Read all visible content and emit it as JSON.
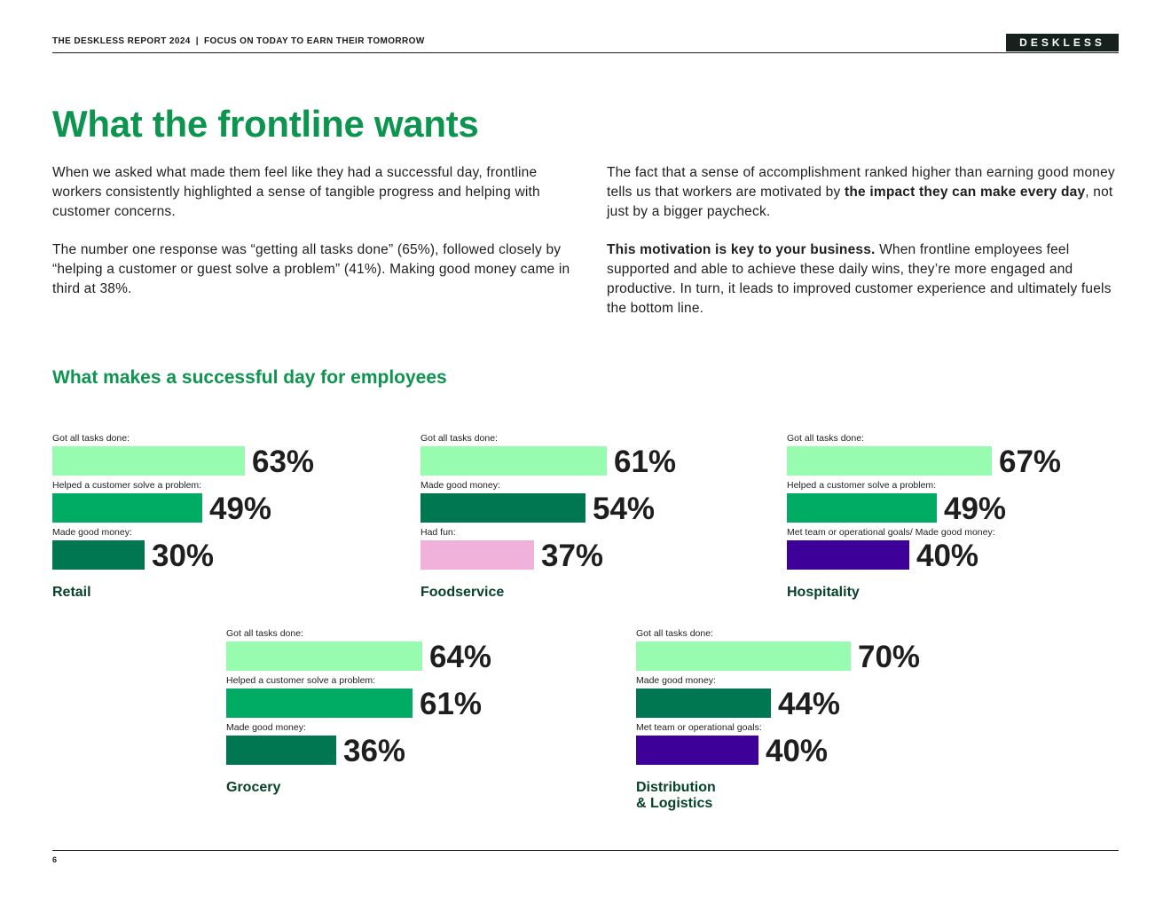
{
  "header": {
    "report_title": "THE DESKLESS REPORT 2024",
    "separator": "|",
    "subtitle": "FOCUS ON TODAY TO EARN THEIR TOMORROW",
    "brand": "DESKLESS"
  },
  "title": "What the frontline wants",
  "left_column": {
    "p1": "When we asked what made them feel like they had a successful day, frontline workers consistently highlighted a sense of tangible progress and helping with customer concerns.",
    "p2": "The number one response was “getting all tasks done” (65%), followed closely by “helping a customer or guest solve a problem” (41%). Making good money came in third at 38%."
  },
  "right_column": {
    "p1_start": "The fact that a sense of accomplishment ranked higher than earning good money tells us that workers are motivated by ",
    "p1_bold": "the impact they can make every day",
    "p1_end": ", not just by a bigger paycheck.",
    "p2_bold": "This motivation is key to your business.",
    "p2_rest": " When frontline employees feel supported and able to achieve these daily wins, they’re more engaged and productive. In turn, it leads to improved customer experience and ultimately fuels the bottom line."
  },
  "section_title": "What makes a successful day for employees",
  "colors": {
    "tasks": "#97fbb0",
    "customer": "#00ab63",
    "money": "#007750",
    "fun": "#f0b2da",
    "goals": "#3d0099",
    "accent": "#0d9550"
  },
  "chart_data": [
    {
      "type": "bar",
      "title": "Retail",
      "categories": [
        "Got all tasks done:",
        "Helped a customer solve a problem:",
        "Made good money:"
      ],
      "values": [
        63,
        49,
        30
      ],
      "value_labels": [
        "63%",
        "49%",
        "30%"
      ],
      "color_keys": [
        "tasks",
        "customer",
        "money"
      ],
      "unit": "%"
    },
    {
      "type": "bar",
      "title": "Foodservice",
      "categories": [
        "Got all tasks done:",
        "Made good money:",
        "Had fun:"
      ],
      "values": [
        61,
        54,
        37
      ],
      "value_labels": [
        "61%",
        "54%",
        "37%"
      ],
      "color_keys": [
        "tasks",
        "money",
        "fun"
      ],
      "unit": "%"
    },
    {
      "type": "bar",
      "title": "Hospitality",
      "categories": [
        "Got all tasks done:",
        "Helped a customer solve a problem:",
        "Met team or operational goals/ Made good money:"
      ],
      "values": [
        67,
        49,
        40
      ],
      "value_labels": [
        "67%",
        "49%",
        "40%"
      ],
      "color_keys": [
        "tasks",
        "customer",
        "goals"
      ],
      "unit": "%"
    },
    {
      "type": "bar",
      "title": "Grocery",
      "categories": [
        "Got all tasks done:",
        "Helped a customer solve a problem:",
        "Made good money:"
      ],
      "values": [
        64,
        61,
        36
      ],
      "value_labels": [
        "64%",
        "61%",
        "36%"
      ],
      "color_keys": [
        "tasks",
        "customer",
        "money"
      ],
      "unit": "%"
    },
    {
      "type": "bar",
      "title": "Distribution & Logistics",
      "categories": [
        "Got all tasks done:",
        "Made good money:",
        "Met team or operational goals:"
      ],
      "values": [
        70,
        44,
        40
      ],
      "value_labels": [
        "70%",
        "44%",
        "40%"
      ],
      "color_keys": [
        "tasks",
        "money",
        "goals"
      ],
      "unit": "%"
    }
  ],
  "footer": {
    "page_number": "6"
  }
}
